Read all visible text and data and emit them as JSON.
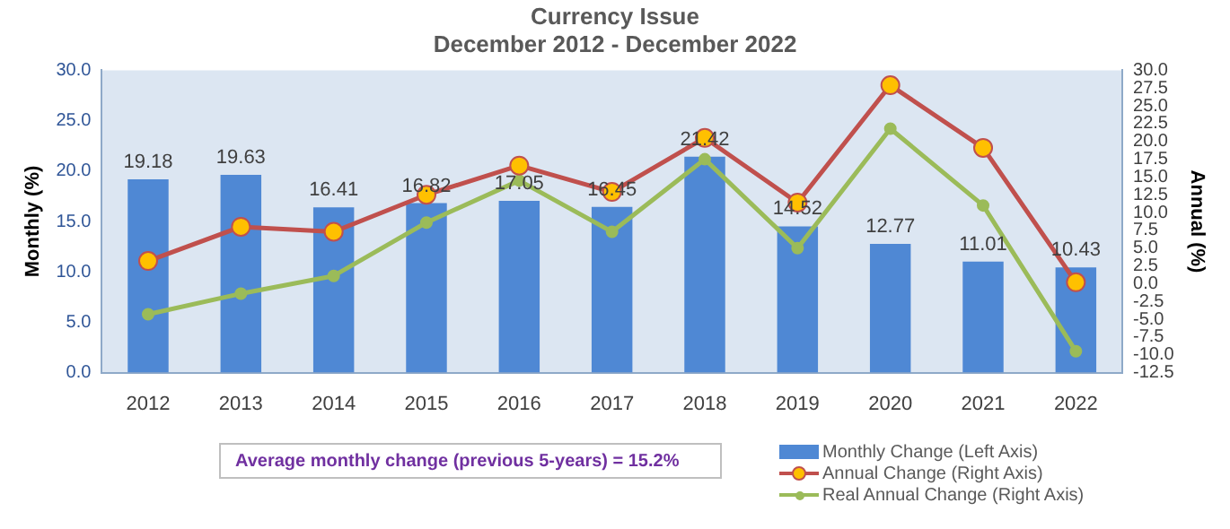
{
  "chart_data": {
    "type": "bar",
    "title": "Currency Issue",
    "subtitle": "December 2012 - December 2022",
    "ylabel": "Monthly (%)",
    "y2label": "Annual (%)",
    "categories": [
      "2012",
      "2013",
      "2014",
      "2015",
      "2016",
      "2017",
      "2018",
      "2019",
      "2020",
      "2021",
      "2022"
    ],
    "series": [
      {
        "name": "Monthly Change (Left Axis)",
        "color": "#4f88d4",
        "values": [
          19.18,
          19.63,
          16.41,
          16.82,
          17.05,
          16.45,
          21.42,
          14.52,
          12.77,
          11.01,
          10.43
        ],
        "value_labels": [
          "19.18",
          "19.63",
          "16.41",
          "16.82",
          "17.05",
          "16.45",
          "21.42",
          "14.52",
          "12.77",
          "11.01",
          "10.43"
        ]
      },
      {
        "name": "Annual Change (Right Axis)",
        "type": "line",
        "axis": "y2",
        "color": "#c0504d",
        "marker": "circle",
        "values": [
          3.2,
          8.0,
          7.3,
          12.5,
          16.6,
          12.9,
          20.5,
          11.4,
          27.9,
          19.1,
          0.2
        ]
      },
      {
        "name": "Real Annual Change (Right Axis)",
        "type": "line",
        "axis": "y2",
        "color": "#9bbb59",
        "marker": "circle",
        "values": [
          -4.3,
          -1.4,
          1.1,
          8.6,
          14.5,
          7.3,
          17.5,
          5.0,
          21.8,
          11.0,
          -9.5
        ]
      }
    ],
    "ylim": [
      0,
      30
    ],
    "yticks": [
      {
        "value": 0,
        "label": "0.0"
      },
      {
        "value": 5,
        "label": "5.0"
      },
      {
        "value": 10,
        "label": "10.0"
      },
      {
        "value": 15,
        "label": "15.0"
      },
      {
        "value": 20,
        "label": "20.0"
      },
      {
        "value": 25,
        "label": "25.0"
      },
      {
        "value": 30,
        "label": "30.0"
      }
    ],
    "y2lim": [
      -12.5,
      30
    ],
    "y2ticks": [
      {
        "value": -12.5,
        "label": "-12.5"
      },
      {
        "value": -10,
        "label": "-10.0"
      },
      {
        "value": -7.5,
        "label": "-7.5"
      },
      {
        "value": -5,
        "label": "-5.0"
      },
      {
        "value": -2.5,
        "label": "-2.5"
      },
      {
        "value": 0,
        "label": "0.0"
      },
      {
        "value": 2.5,
        "label": "2.5"
      },
      {
        "value": 5,
        "label": "5.0"
      },
      {
        "value": 7.5,
        "label": "7.5"
      },
      {
        "value": 10,
        "label": "10.0"
      },
      {
        "value": 12.5,
        "label": "12.5"
      },
      {
        "value": 15,
        "label": "15.0"
      },
      {
        "value": 17.5,
        "label": "17.5"
      },
      {
        "value": 20,
        "label": "20.0"
      },
      {
        "value": 22.5,
        "label": "22.5"
      },
      {
        "value": 25,
        "label": "25.0"
      },
      {
        "value": 27.5,
        "label": "27.5"
      },
      {
        "value": 30,
        "label": "30.0"
      }
    ],
    "grid": false,
    "legend": "bottom right",
    "annotations": [
      "Average monthly change (previous 5-years) = 15.2%"
    ]
  }
}
